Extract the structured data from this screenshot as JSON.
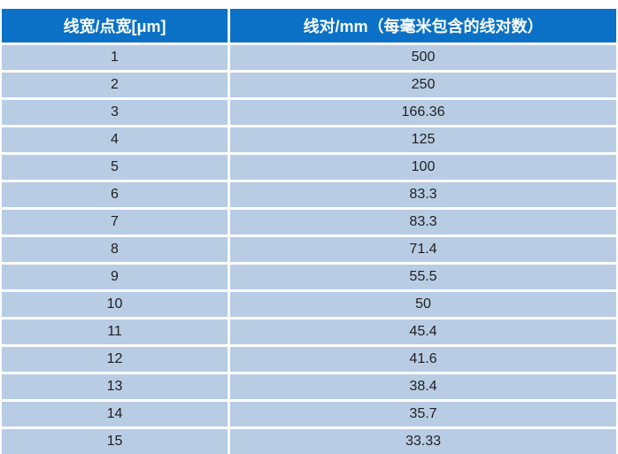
{
  "chart_data": {
    "type": "table",
    "title": "",
    "columns": [
      "线宽/点宽[μm]",
      "线对/mm（每毫米包含的线对数）"
    ],
    "rows": [
      [
        1,
        500
      ],
      [
        2,
        250
      ],
      [
        3,
        166.36
      ],
      [
        4,
        125
      ],
      [
        5,
        100
      ],
      [
        6,
        83.3
      ],
      [
        7,
        83.3
      ],
      [
        8,
        71.4
      ],
      [
        9,
        55.5
      ],
      [
        10,
        50
      ],
      [
        11,
        45.4
      ],
      [
        12,
        41.6
      ],
      [
        13,
        38.4
      ],
      [
        14,
        35.7
      ],
      [
        15,
        33.33
      ]
    ]
  },
  "table": {
    "header": {
      "linewidth_label": "线宽/点宽[μm]",
      "linepairs_label": "线对/mm（每毫米包含的线对数）"
    },
    "rows": [
      {
        "linewidth": "1",
        "linepairs": "500"
      },
      {
        "linewidth": "2",
        "linepairs": "250"
      },
      {
        "linewidth": "3",
        "linepairs": "166.36"
      },
      {
        "linewidth": "4",
        "linepairs": "125"
      },
      {
        "linewidth": "5",
        "linepairs": "100"
      },
      {
        "linewidth": "6",
        "linepairs": "83.3"
      },
      {
        "linewidth": "7",
        "linepairs": "83.3"
      },
      {
        "linewidth": "8",
        "linepairs": "71.4"
      },
      {
        "linewidth": "9",
        "linepairs": "55.5"
      },
      {
        "linewidth": "10",
        "linepairs": "50"
      },
      {
        "linewidth": "11",
        "linepairs": "45.4"
      },
      {
        "linewidth": "12",
        "linepairs": "41.6"
      },
      {
        "linewidth": "13",
        "linepairs": "38.4"
      },
      {
        "linewidth": "14",
        "linepairs": "35.7"
      },
      {
        "linewidth": "15",
        "linepairs": "33.33"
      }
    ],
    "colors": {
      "header_bg": "#0a71c6",
      "header_text": "#ffffff",
      "row_bg": "#b8cce4",
      "divider": "#ffffff",
      "cell_text": "#1f1f1f"
    }
  }
}
